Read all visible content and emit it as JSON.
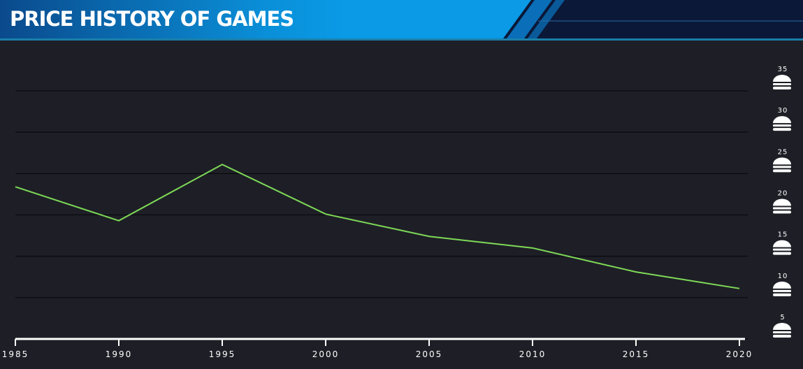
{
  "chart_data": {
    "type": "line",
    "title": "PRICE HISTORY OF GAMES",
    "x": [
      1985,
      1990,
      1995,
      2000,
      2005,
      2010,
      2015,
      2020
    ],
    "series": [
      {
        "color": "#7ed957",
        "values": [
          23.4,
          19.3,
          26.1,
          20.1,
          17.4,
          16.0,
          13.1,
          11.1
        ]
      }
    ],
    "xlim": [
      1985,
      2020
    ],
    "xticks": [
      1985,
      1990,
      1995,
      2000,
      2005,
      2010,
      2015,
      2020
    ],
    "ylim": [
      5,
      35
    ],
    "yticks": [
      5,
      10,
      15,
      20,
      25,
      30,
      35
    ],
    "grid": true
  }
}
